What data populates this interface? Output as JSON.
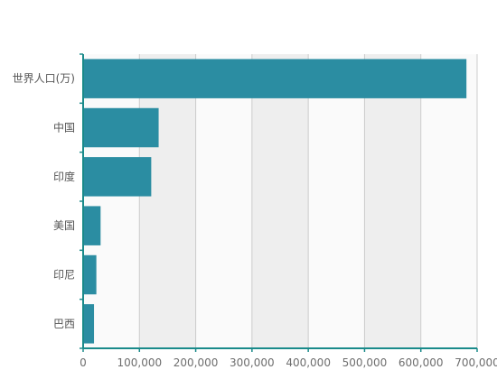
{
  "chart_data": {
    "type": "bar",
    "orientation": "horizontal",
    "categories": [
      "世界人口(万)",
      "中国",
      "印度",
      "美国",
      "印尼",
      "巴西"
    ],
    "values": [
      681034,
      134141,
      121000,
      31000,
      23489,
      19325
    ],
    "xlim": [
      0,
      700000
    ],
    "x_ticks": [
      0,
      100000,
      200000,
      300000,
      400000,
      500000,
      600000,
      700000
    ],
    "x_tick_labels": [
      "0",
      "100,000",
      "200,000",
      "300,000",
      "400,000",
      "500,000",
      "600,000",
      "700,000"
    ],
    "grid": "vertical split areas (alternating bands)",
    "legend": "none",
    "colors": {
      "bar": "#2b8da2",
      "axis": "#1a8a8a",
      "grid_line": "#cccccc",
      "band_light": "#fafafa",
      "band_dark": "#eeeeee"
    }
  }
}
